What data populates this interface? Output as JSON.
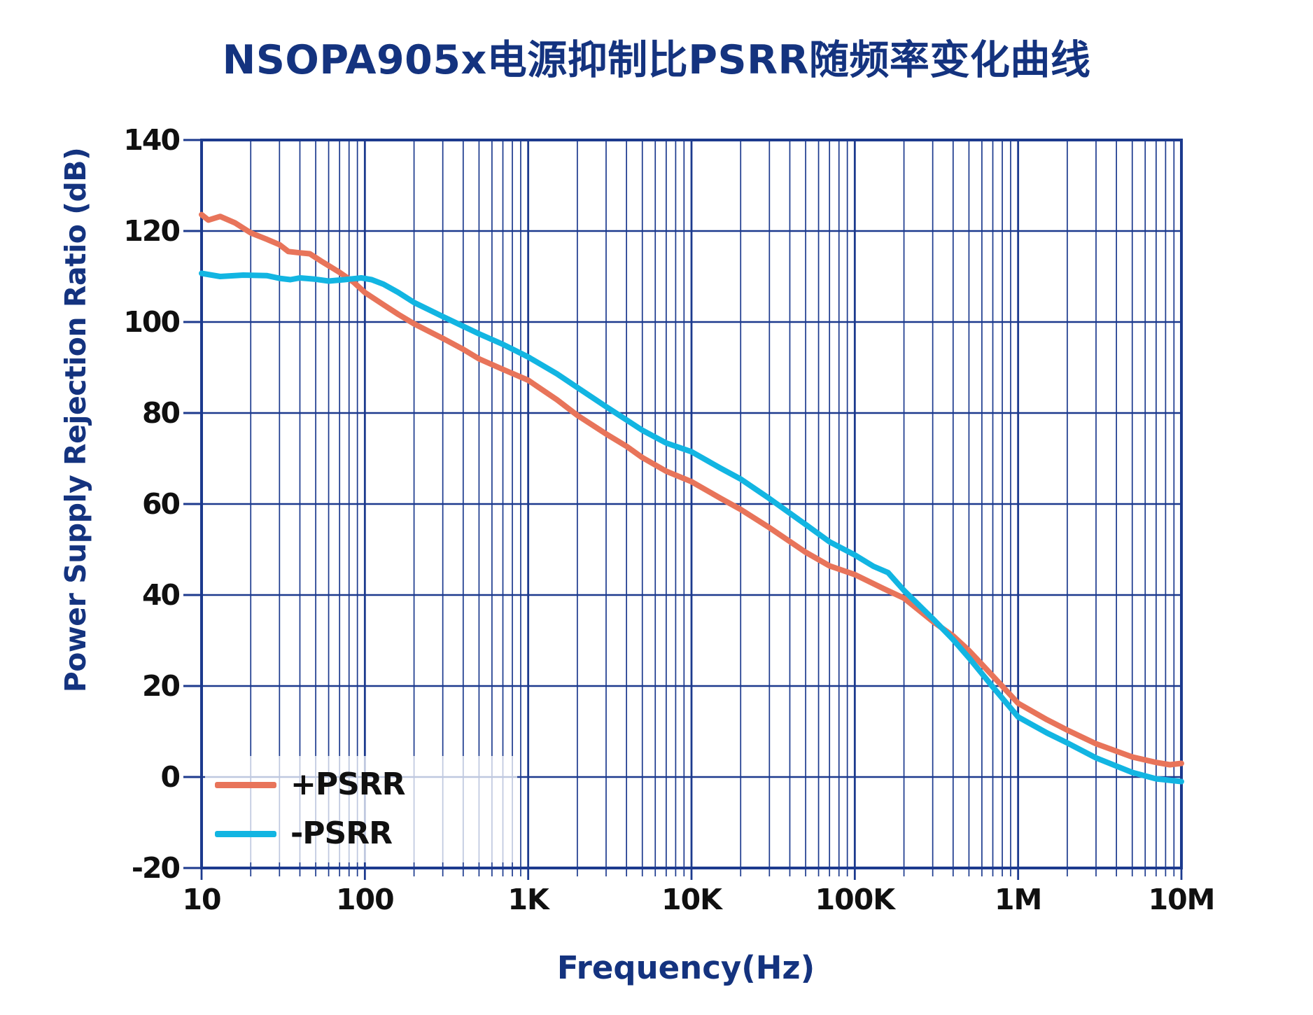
{
  "title": "NSOPA905x电源抑制比PSRR随频率变化曲线",
  "colors": {
    "background": "#FFFFFF",
    "grid": "#1C3A8E",
    "plot_border": "#1C3A8E",
    "axis_title_text": "#14337F",
    "tick_text": "#101010",
    "pos_psrr": "#E8745A",
    "neg_psrr": "#12B5E2",
    "legend_background": "rgba(255,255,255,0.72)"
  },
  "chart_data": {
    "type": "line",
    "x_scale": "log",
    "grid": "on",
    "title": "NSOPA905x电源抑制比PSRR随频率变化曲线",
    "xlabel": "Frequency(Hz)",
    "ylabel": "Power Supply Rejection Ratio (dB)",
    "xlim_hz": [
      10,
      10000000
    ],
    "ylim": [
      -20,
      140
    ],
    "legend_position": "lower-left-inside",
    "x_ticks": [
      {
        "label": "10",
        "value": 10
      },
      {
        "label": "100",
        "value": 100
      },
      {
        "label": "1K",
        "value": 1000
      },
      {
        "label": "10K",
        "value": 10000
      },
      {
        "label": "100K",
        "value": 100000
      },
      {
        "label": "1M",
        "value": 1000000
      },
      {
        "label": "10M",
        "value": 10000000
      }
    ],
    "y_ticks": [
      {
        "label": "140",
        "value": 140
      },
      {
        "label": "120",
        "value": 120
      },
      {
        "label": "100",
        "value": 100
      },
      {
        "label": "80",
        "value": 80
      },
      {
        "label": "60",
        "value": 60
      },
      {
        "label": "40",
        "value": 40
      },
      {
        "label": "20",
        "value": 20
      },
      {
        "label": "0",
        "value": 0
      },
      {
        "label": "-20",
        "value": -20
      }
    ],
    "legend": [
      {
        "label": "+PSRR",
        "color": "#E8745A"
      },
      {
        "label": "-PSRR",
        "color": "#12B5E2"
      }
    ],
    "series": [
      {
        "name": "+PSRR",
        "color": "#E8745A",
        "points": [
          [
            10,
            123.6
          ],
          [
            11,
            122.4
          ],
          [
            13,
            123.2
          ],
          [
            16,
            121.8
          ],
          [
            20,
            119.6
          ],
          [
            25,
            118.2
          ],
          [
            30,
            117.0
          ],
          [
            34,
            115.5
          ],
          [
            40,
            115.2
          ],
          [
            46,
            115.0
          ],
          [
            55,
            113.2
          ],
          [
            70,
            110.9
          ],
          [
            85,
            108.8
          ],
          [
            100,
            106.5
          ],
          [
            130,
            103.8
          ],
          [
            160,
            101.7
          ],
          [
            200,
            99.6
          ],
          [
            300,
            96.4
          ],
          [
            400,
            94.0
          ],
          [
            500,
            91.9
          ],
          [
            700,
            89.6
          ],
          [
            1000,
            87.2
          ],
          [
            1500,
            82.9
          ],
          [
            2000,
            79.5
          ],
          [
            3000,
            75.4
          ],
          [
            4000,
            72.7
          ],
          [
            5000,
            70.2
          ],
          [
            7000,
            67.2
          ],
          [
            10000,
            64.9
          ],
          [
            15000,
            61.3
          ],
          [
            20000,
            58.8
          ],
          [
            30000,
            54.8
          ],
          [
            50000,
            49.4
          ],
          [
            70000,
            46.4
          ],
          [
            100000,
            44.5
          ],
          [
            150000,
            41.4
          ],
          [
            200000,
            39.3
          ],
          [
            300000,
            34.2
          ],
          [
            400000,
            31.0
          ],
          [
            500000,
            27.8
          ],
          [
            700000,
            22.2
          ],
          [
            1000000,
            16.2
          ],
          [
            1500000,
            12.6
          ],
          [
            2000000,
            10.3
          ],
          [
            3000000,
            7.3
          ],
          [
            5000000,
            4.4
          ],
          [
            7000000,
            3.2
          ],
          [
            8500000,
            2.7
          ],
          [
            10000000,
            3.0
          ]
        ]
      },
      {
        "name": "-PSRR",
        "color": "#12B5E2",
        "points": [
          [
            10,
            110.7
          ],
          [
            13,
            110.0
          ],
          [
            18,
            110.3
          ],
          [
            25,
            110.2
          ],
          [
            30,
            109.6
          ],
          [
            35,
            109.3
          ],
          [
            40,
            109.7
          ],
          [
            50,
            109.4
          ],
          [
            60,
            109.0
          ],
          [
            75,
            109.3
          ],
          [
            95,
            109.7
          ],
          [
            110,
            109.3
          ],
          [
            130,
            108.3
          ],
          [
            160,
            106.5
          ],
          [
            200,
            104.3
          ],
          [
            300,
            101.2
          ],
          [
            500,
            97.4
          ],
          [
            700,
            95.1
          ],
          [
            1000,
            92.3
          ],
          [
            1500,
            88.6
          ],
          [
            2000,
            85.6
          ],
          [
            3000,
            81.4
          ],
          [
            5000,
            76.2
          ],
          [
            7000,
            73.4
          ],
          [
            10000,
            71.5
          ],
          [
            15000,
            67.9
          ],
          [
            20000,
            65.5
          ],
          [
            30000,
            61.2
          ],
          [
            50000,
            55.5
          ],
          [
            70000,
            51.7
          ],
          [
            100000,
            48.8
          ],
          [
            130000,
            46.3
          ],
          [
            160000,
            44.9
          ],
          [
            200000,
            41.0
          ],
          [
            300000,
            34.8
          ],
          [
            400000,
            30.2
          ],
          [
            500000,
            26.2
          ],
          [
            700000,
            19.8
          ],
          [
            1000000,
            13.2
          ],
          [
            1500000,
            9.7
          ],
          [
            2000000,
            7.5
          ],
          [
            3000000,
            4.2
          ],
          [
            5000000,
            1.0
          ],
          [
            7000000,
            -0.4
          ],
          [
            10000000,
            -1.0
          ]
        ]
      }
    ]
  }
}
